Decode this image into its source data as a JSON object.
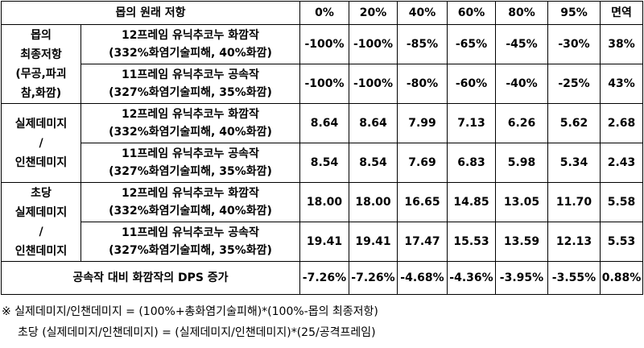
{
  "header": {
    "label": "몹의 원래 저항",
    "columns": [
      "0%",
      "20%",
      "40%",
      "60%",
      "80%",
      "95%",
      "면역"
    ]
  },
  "groups": [
    {
      "label_lines": [
        "몹의",
        "최종저항",
        "(무공,파괴",
        "참,화깜)"
      ],
      "rows": [
        {
          "name_lines": [
            "12프레임 유닉추코누 화깜작",
            "(332%화염기술피해, 40%화깜)"
          ],
          "cells": [
            "-100%",
            "-100%",
            "-85%",
            "-65%",
            "-45%",
            "-30%",
            "38%"
          ]
        },
        {
          "name_lines": [
            "11프레임 유닉추코누 공속작",
            "(327%화염기술피해, 35%화깜)"
          ],
          "cells": [
            "-100%",
            "-100%",
            "-80%",
            "-60%",
            "-40%",
            "-25%",
            "43%"
          ]
        }
      ]
    },
    {
      "label_lines": [
        "실제데미지",
        "/",
        "인챈데미지"
      ],
      "rows": [
        {
          "name_lines": [
            "12프레임 유닉추코누 화깜작",
            "(332%화염기술피해, 40%화깜)"
          ],
          "cells": [
            "8.64",
            "8.64",
            "7.99",
            "7.13",
            "6.26",
            "5.62",
            "2.68"
          ]
        },
        {
          "name_lines": [
            "11프레임 유닉추코누 공속작",
            "(327%화염기술피해, 35%화깜)"
          ],
          "cells": [
            "8.54",
            "8.54",
            "7.69",
            "6.83",
            "5.98",
            "5.34",
            "2.43"
          ]
        }
      ]
    },
    {
      "label_lines": [
        "초당",
        "실제데미지",
        "/",
        "인챈데미지"
      ],
      "rows": [
        {
          "name_lines": [
            "12프레임 유닉추코누 화깜작",
            "(332%화염기술피해, 40%화깜)"
          ],
          "cells": [
            "18.00",
            "18.00",
            "16.65",
            "14.85",
            "13.05",
            "11.70",
            "5.58"
          ]
        },
        {
          "name_lines": [
            "11프레임 유닉추코누 공속작",
            "(327%화염기술피해, 35%화깜)"
          ],
          "cells": [
            "19.41",
            "19.41",
            "17.47",
            "15.53",
            "13.59",
            "12.13",
            "5.53"
          ]
        }
      ]
    }
  ],
  "footer": {
    "label": "공속작 대비 화깜작의 DPS 증가",
    "cells": [
      "-7.26%",
      "-7.26%",
      "-4.68%",
      "-4.36%",
      "-3.95%",
      "-3.55%",
      "0.88%"
    ]
  },
  "notes": [
    "※ 실제데미지/인챈데미지 = (100%+총화염기술피해)*(100%-몹의 최종저항)",
    "초당 (실제데미지/인챈데미지) = (실제데미지/인챈데미지)*(25/공격프레임)"
  ]
}
